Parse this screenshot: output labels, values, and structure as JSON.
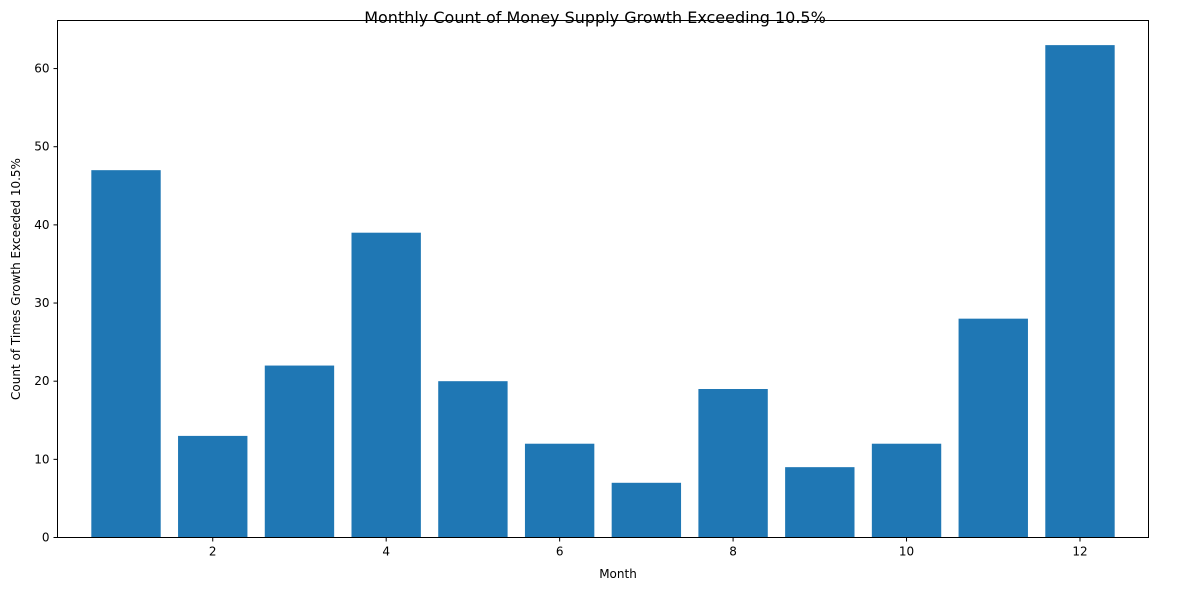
{
  "chart_data": {
    "type": "bar",
    "title": "Monthly Count of Money Supply Growth Exceeding 10.5%",
    "xlabel": "Month",
    "ylabel": "Count of Times Growth Exceeded 10.5%",
    "categories": [
      1,
      2,
      3,
      4,
      5,
      6,
      7,
      8,
      9,
      10,
      11,
      12
    ],
    "values": [
      47,
      13,
      22,
      39,
      20,
      12,
      7,
      19,
      9,
      12,
      28,
      63
    ],
    "xlim": [
      0.21,
      12.79
    ],
    "ylim": [
      0,
      66.15
    ],
    "xticks": [
      2,
      4,
      6,
      8,
      10,
      12
    ],
    "yticks": [
      0,
      10,
      20,
      30,
      40,
      50,
      60
    ],
    "bar_color": "#1f77b4",
    "grid": false,
    "legend": "none"
  }
}
